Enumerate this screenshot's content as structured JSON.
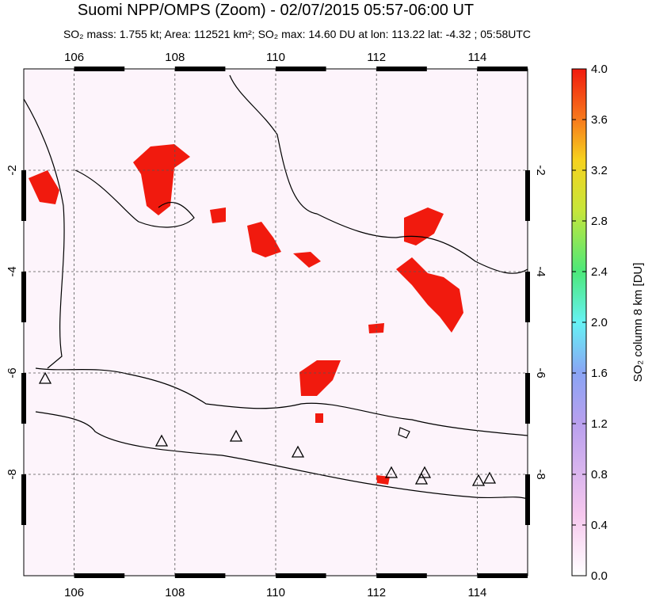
{
  "title": "Suomi NPP/OMPS (Zoom) - 02/07/2015 05:57-06:00 UT",
  "subtitle": "SO₂ mass: 1.755 kt; Area: 112521 km²; SO₂ max: 14.60 DU at lon: 113.22 lat: -4.32 ; 05:58UTC",
  "map": {
    "lonlim": [
      105,
      115
    ],
    "latlim": [
      -10,
      0
    ],
    "lon_ticks": [
      106,
      108,
      110,
      112,
      114
    ],
    "lat_ticks": [
      -2,
      -4,
      -6,
      -8
    ]
  },
  "colorbar": {
    "label": "SO₂ column 8 km [DU]",
    "lim": [
      0,
      4
    ],
    "ticks": [
      {
        "value": 0,
        "label": "0.0"
      },
      {
        "value": 0.4,
        "label": "0.4"
      },
      {
        "value": 0.8,
        "label": "0.8"
      },
      {
        "value": 1.2,
        "label": "1.2"
      },
      {
        "value": 1.6,
        "label": "1.6"
      },
      {
        "value": 2.0,
        "label": "2.0"
      },
      {
        "value": 2.4,
        "label": "2.4"
      },
      {
        "value": 2.8,
        "label": "2.8"
      },
      {
        "value": 3.2,
        "label": "3.2"
      },
      {
        "value": 3.6,
        "label": "3.6"
      },
      {
        "value": 4.0,
        "label": "4.0"
      }
    ]
  }
}
